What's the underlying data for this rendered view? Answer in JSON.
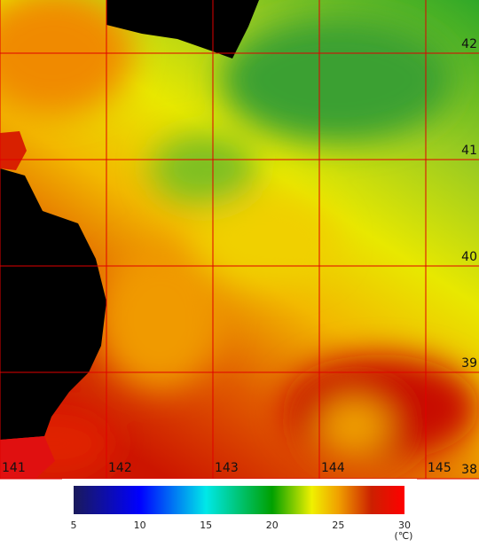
{
  "map": {
    "longitudes": [
      141,
      142,
      143,
      144,
      145
    ],
    "latitudes": [
      42,
      41,
      40,
      39,
      38
    ]
  },
  "colorbar": {
    "range": [
      5,
      30
    ],
    "ticks": [
      5,
      10,
      15,
      20,
      25,
      30
    ],
    "unit": "(℃)"
  }
}
